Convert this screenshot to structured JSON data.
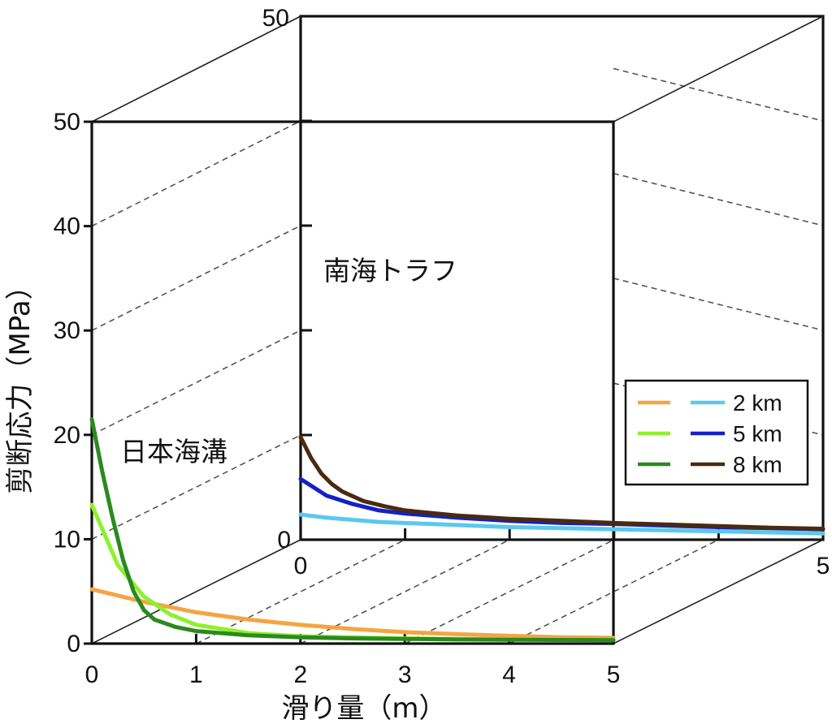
{
  "chart_data": {
    "type": "line",
    "xlabel": "滑り量（m）",
    "ylabel": "剪断応力（MPa）",
    "xlim": [
      0,
      5
    ],
    "ylim": [
      0,
      50
    ],
    "x_ticks": [
      "0",
      "1",
      "2",
      "3",
      "4",
      "5"
    ],
    "y_ticks": [
      "0",
      "10",
      "20",
      "30",
      "40",
      "50"
    ],
    "back_y_ticks": [
      "0",
      "50"
    ],
    "back_x_ticks": [
      "0",
      "5"
    ],
    "grid": true,
    "legend_placement": "right",
    "legend_labels": [
      "2 km",
      "5 km",
      "8 km"
    ],
    "panels": [
      {
        "name": "日本海溝",
        "plane": "front",
        "series": [
          {
            "depth_label": "2 km",
            "color": "#f5a442",
            "x": [
              0,
              0.25,
              0.5,
              0.75,
              1,
              1.5,
              2,
              2.5,
              3,
              3.5,
              4,
              4.5,
              5
            ],
            "y": [
              5.2,
              4.6,
              4.0,
              3.5,
              3.0,
              2.3,
              1.8,
              1.4,
              1.1,
              0.9,
              0.75,
              0.6,
              0.55
            ]
          },
          {
            "depth_label": "5 km",
            "color": "#8ef02e",
            "x": [
              0,
              0.25,
              0.5,
              0.75,
              1,
              1.5,
              2,
              2.5,
              3,
              3.5,
              4,
              4.5,
              5
            ],
            "y": [
              13.3,
              7.5,
              4.5,
              2.8,
              1.8,
              1.0,
              0.7,
              0.6,
              0.5,
              0.45,
              0.4,
              0.38,
              0.35
            ]
          },
          {
            "depth_label": "8 km",
            "color": "#2a8a1e",
            "x": [
              0,
              0.1,
              0.2,
              0.3,
              0.4,
              0.5,
              0.6,
              0.8,
              1,
              1.5,
              2,
              2.5,
              3,
              3.5,
              4,
              4.5,
              5
            ],
            "y": [
              21.5,
              16.5,
              12.0,
              8.0,
              5.0,
              3.2,
              2.3,
              1.6,
              1.2,
              0.8,
              0.6,
              0.5,
              0.45,
              0.4,
              0.37,
              0.35,
              0.33
            ]
          }
        ]
      },
      {
        "name": "南海トラフ",
        "plane": "back",
        "series": [
          {
            "depth_label": "2 km",
            "color": "#5ac8f0",
            "x": [
              0,
              0.25,
              0.5,
              0.75,
              1,
              1.5,
              2,
              2.5,
              3,
              3.5,
              4,
              4.5,
              5
            ],
            "y": [
              2.4,
              2.1,
              1.9,
              1.7,
              1.6,
              1.4,
              1.2,
              1.1,
              1.0,
              0.9,
              0.8,
              0.7,
              0.6
            ]
          },
          {
            "depth_label": "5 km",
            "color": "#1420c8",
            "x": [
              0,
              0.25,
              0.5,
              0.75,
              1,
              1.5,
              2,
              2.5,
              3,
              3.5,
              4,
              4.5,
              5
            ],
            "y": [
              5.8,
              4.2,
              3.4,
              2.8,
              2.5,
              2.1,
              1.8,
              1.6,
              1.5,
              1.35,
              1.2,
              1.1,
              1.0
            ]
          },
          {
            "depth_label": "8 km",
            "color": "#4a2a10",
            "x": [
              0,
              0.1,
              0.2,
              0.3,
              0.4,
              0.6,
              0.8,
              1,
              1.5,
              2,
              2.5,
              3,
              3.5,
              4,
              4.5,
              5
            ],
            "y": [
              9.8,
              7.8,
              6.3,
              5.3,
              4.6,
              3.7,
              3.2,
              2.8,
              2.3,
              2.0,
              1.8,
              1.6,
              1.45,
              1.3,
              1.15,
              1.05
            ]
          }
        ]
      }
    ]
  }
}
